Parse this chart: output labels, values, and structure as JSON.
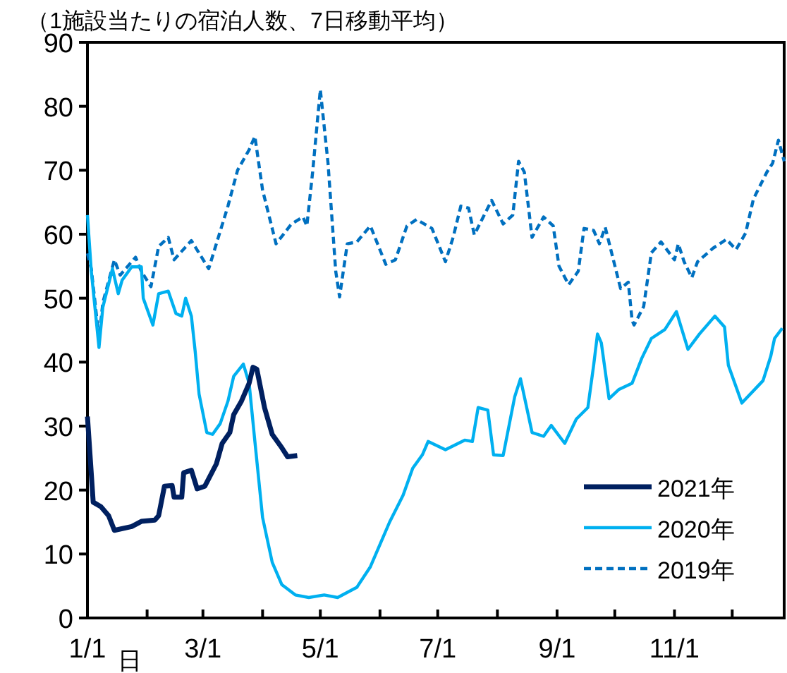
{
  "chart_data": {
    "type": "line",
    "title": "（1施設当たりの宿泊人数、7日移動平均）",
    "xlabel": "日",
    "xlim": [
      "--01-01",
      "--12-28"
    ],
    "xticks": [
      {
        "value": "--01-01",
        "label": "1/1"
      },
      {
        "value": "--02-01",
        "label": null
      },
      {
        "value": "--03-01",
        "label": "3/1"
      },
      {
        "value": "--04-01",
        "label": null
      },
      {
        "value": "--05-01",
        "label": "5/1"
      },
      {
        "value": "--06-01",
        "label": null
      },
      {
        "value": "--07-01",
        "label": "7/1"
      },
      {
        "value": "--08-01",
        "label": null
      },
      {
        "value": "--09-01",
        "label": "9/1"
      },
      {
        "value": "--10-01",
        "label": null
      },
      {
        "value": "--11-01",
        "label": "11/1"
      },
      {
        "value": "--12-01",
        "label": null
      }
    ],
    "ylim": [
      0,
      90
    ],
    "yticks": [
      0,
      10,
      20,
      30,
      40,
      50,
      60,
      70,
      80,
      90
    ],
    "grid": false,
    "legend": "bottom right",
    "series": [
      {
        "name": "2021年",
        "color": "#002060",
        "line_style": "solid",
        "x": [
          "--01-01",
          "--01-04",
          "--01-08",
          "--01-12",
          "--01-15",
          "--01-24",
          "--01-29",
          "--02-05",
          "--02-07",
          "--02-10",
          "--02-14",
          "--02-15",
          "--02-19",
          "--02-20",
          "--02-24",
          "--02-27",
          "--03-02",
          "--03-08",
          "--03-11",
          "--03-15",
          "--03-17",
          "--03-21",
          "--03-25",
          "--03-27",
          "--03-29",
          "--04-02",
          "--04-06",
          "--04-11",
          "--04-14",
          "--04-19"
        ],
        "values": [
          31.5,
          18.1,
          17.4,
          16.0,
          13.7,
          14.3,
          15.1,
          15.3,
          16.0,
          20.6,
          20.7,
          18.9,
          18.9,
          22.7,
          23.1,
          20.2,
          20.6,
          24.1,
          27.3,
          29.0,
          31.8,
          33.9,
          36.7,
          39.2,
          38.9,
          32.9,
          28.7,
          26.6,
          25.2,
          25.4
        ]
      },
      {
        "name": "2020年",
        "color": "#00b0f0",
        "line_style": "solid",
        "x": [
          "--01-01",
          "--01-03",
          "--01-07",
          "--01-09",
          "--01-14",
          "--01-17",
          "--01-19",
          "--01-24",
          "--01-29",
          "--01-30",
          "--02-04",
          "--02-07",
          "--02-12",
          "--02-16",
          "--02-19",
          "--02-21",
          "--02-24",
          "--02-26",
          "--02-28",
          "--03-03",
          "--03-06",
          "--03-10",
          "--03-14",
          "--03-17",
          "--03-22",
          "--03-25",
          "--03-28",
          "--04-01",
          "--04-06",
          "--04-11",
          "--04-18",
          "--04-25",
          "--05-03",
          "--05-10",
          "--05-20",
          "--05-27",
          "--06-06",
          "--06-13",
          "--06-18",
          "--06-23",
          "--06-26",
          "--07-05",
          "--07-15",
          "--07-19",
          "--07-22",
          "--07-27",
          "--07-30",
          "--08-04",
          "--08-10",
          "--08-13",
          "--08-19",
          "--08-25",
          "--08-29",
          "--09-05",
          "--09-11",
          "--09-17",
          "--09-20",
          "--09-22",
          "--09-24",
          "--09-28",
          "--10-03",
          "--10-10",
          "--10-15",
          "--10-20",
          "--10-27",
          "--11-02",
          "--11-08",
          "--11-14",
          "--11-22",
          "--11-27",
          "--11-29",
          "--12-06",
          "--12-17",
          "--12-21",
          "--12-23",
          "--12-27"
        ],
        "values": [
          63.0,
          54.2,
          42.3,
          48.6,
          54.6,
          50.7,
          52.8,
          54.9,
          54.9,
          50.0,
          45.8,
          50.7,
          51.1,
          47.6,
          47.2,
          50.0,
          47.2,
          41.6,
          35.0,
          29.0,
          28.7,
          30.4,
          33.9,
          37.8,
          39.7,
          36.7,
          27.6,
          15.7,
          8.7,
          5.2,
          3.6,
          3.2,
          3.6,
          3.2,
          4.8,
          8.0,
          15.0,
          19.2,
          23.4,
          25.5,
          27.6,
          26.3,
          27.8,
          27.6,
          32.9,
          32.5,
          25.5,
          25.4,
          34.6,
          37.4,
          29.0,
          28.4,
          30.1,
          27.3,
          31.1,
          32.9,
          39.5,
          44.4,
          43.0,
          34.3,
          35.7,
          36.7,
          40.6,
          43.7,
          45.1,
          47.9,
          42.0,
          44.4,
          47.2,
          45.5,
          39.5,
          33.6,
          37.1,
          40.9,
          43.7,
          45.3
        ]
      },
      {
        "name": "2019年",
        "color": "#0070c0",
        "line_style": "dashed",
        "x": [
          "--01-01",
          "--01-03",
          "--01-07",
          "--01-09",
          "--01-15",
          "--01-18",
          "--01-26",
          "--01-29",
          "--02-03",
          "--02-07",
          "--02-12",
          "--02-15",
          "--02-24",
          "--03-04",
          "--03-14",
          "--03-19",
          "--03-25",
          "--03-28",
          "--04-01",
          "--04-08",
          "--04-16",
          "--04-22",
          "--04-24",
          "--04-27",
          "--05-01",
          "--05-05",
          "--05-09",
          "--05-11",
          "--05-15",
          "--05-20",
          "--05-27",
          "--06-04",
          "--06-09",
          "--06-15",
          "--06-20",
          "--06-28",
          "--07-05",
          "--07-09",
          "--07-13",
          "--07-17",
          "--07-20",
          "--07-29",
          "--08-04",
          "--08-09",
          "--08-12",
          "--08-15",
          "--08-19",
          "--08-25",
          "--08-30",
          "--09-02",
          "--09-07",
          "--09-12",
          "--09-15",
          "--09-20",
          "--09-23",
          "--09-26",
          "--10-04",
          "--10-08",
          "--10-10",
          "--10-11",
          "--10-16",
          "--10-20",
          "--10-25",
          "--11-01",
          "--11-03",
          "--11-06",
          "--11-10",
          "--11-13",
          "--11-21",
          "--11-28",
          "--12-03",
          "--12-08",
          "--12-12",
          "--12-19",
          "--12-22",
          "--12-25",
          "--12-28"
        ],
        "values": [
          57.0,
          54.6,
          43.7,
          49.3,
          56.0,
          53.6,
          56.4,
          54.2,
          51.8,
          58.1,
          59.5,
          56.0,
          59.0,
          54.6,
          64.4,
          70.0,
          73.2,
          75.3,
          66.9,
          58.5,
          61.6,
          62.7,
          61.3,
          69.7,
          82.6,
          71.1,
          54.2,
          50.2,
          58.5,
          58.8,
          61.3,
          55.3,
          56.0,
          61.3,
          62.3,
          60.9,
          55.7,
          59.5,
          64.4,
          64.1,
          59.9,
          65.3,
          61.6,
          63.0,
          71.4,
          69.7,
          59.5,
          62.7,
          61.3,
          55.0,
          52.1,
          54.2,
          60.9,
          60.6,
          58.5,
          61.1,
          51.5,
          52.5,
          46.5,
          45.8,
          48.7,
          57.1,
          58.8,
          56.0,
          58.5,
          55.7,
          53.2,
          55.7,
          57.8,
          59.2,
          57.6,
          60.2,
          65.5,
          69.7,
          71.1,
          74.7,
          71.4
        ]
      }
    ]
  }
}
